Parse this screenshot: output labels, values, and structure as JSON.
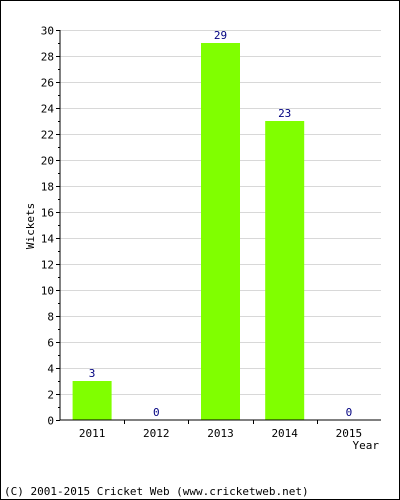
{
  "chart_data": {
    "type": "bar",
    "categories": [
      "2011",
      "2012",
      "2013",
      "2014",
      "2015"
    ],
    "values": [
      3,
      0,
      29,
      23,
      0
    ],
    "data_labels": [
      "3",
      "0",
      "29",
      "23",
      "0"
    ],
    "xlabel": "Year",
    "ylabel": "Wickets",
    "ylim": [
      0,
      30
    ],
    "y_ticks": [
      "0",
      "2",
      "4",
      "6",
      "8",
      "10",
      "12",
      "14",
      "16",
      "18",
      "20",
      "22",
      "24",
      "26",
      "28",
      "30"
    ],
    "grid": true,
    "bar_color": "#80ff00",
    "label_color": "#000080"
  },
  "footer": {
    "copyright": "(C) 2001-2015 Cricket Web (www.cricketweb.net)"
  }
}
